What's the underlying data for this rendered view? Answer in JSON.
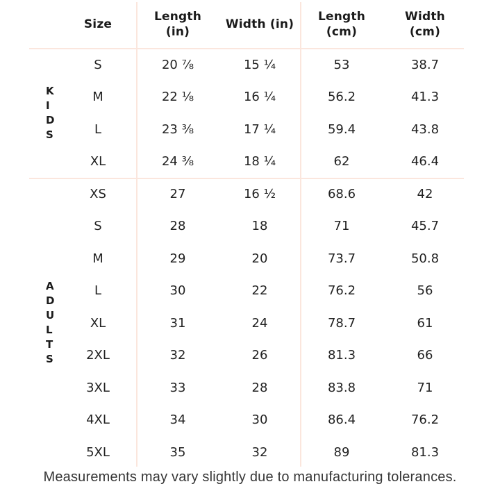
{
  "colors": {
    "background": "#ffffff",
    "divider": "#fbe6dd",
    "text": "#1f1f1f",
    "footer_text": "#363636"
  },
  "table": {
    "columns": {
      "size": "Size",
      "length_in": "Length\n(in)",
      "width_in": "Width (in)",
      "length_cm": "Length\n(cm)",
      "width_cm": "Width\n(cm)"
    },
    "groups": [
      {
        "label": "KIDS",
        "rows": [
          {
            "size": "S",
            "length_in": "20 ⅞",
            "width_in": "15 ¼",
            "length_cm": "53",
            "width_cm": "38.7"
          },
          {
            "size": "M",
            "length_in": "22 ⅛",
            "width_in": "16 ¼",
            "length_cm": "56.2",
            "width_cm": "41.3"
          },
          {
            "size": "L",
            "length_in": "23 ⅜",
            "width_in": "17 ¼",
            "length_cm": "59.4",
            "width_cm": "43.8"
          },
          {
            "size": "XL",
            "length_in": "24 ⅜",
            "width_in": "18 ¼",
            "length_cm": "62",
            "width_cm": "46.4"
          }
        ]
      },
      {
        "label": "ADULTS",
        "rows": [
          {
            "size": "XS",
            "length_in": "27",
            "width_in": "16 ½",
            "length_cm": "68.6",
            "width_cm": "42"
          },
          {
            "size": "S",
            "length_in": "28",
            "width_in": "18",
            "length_cm": "71",
            "width_cm": "45.7"
          },
          {
            "size": "M",
            "length_in": "29",
            "width_in": "20",
            "length_cm": "73.7",
            "width_cm": "50.8"
          },
          {
            "size": "L",
            "length_in": "30",
            "width_in": "22",
            "length_cm": "76.2",
            "width_cm": "56"
          },
          {
            "size": "XL",
            "length_in": "31",
            "width_in": "24",
            "length_cm": "78.7",
            "width_cm": "61"
          },
          {
            "size": "2XL",
            "length_in": "32",
            "width_in": "26",
            "length_cm": "81.3",
            "width_cm": "66"
          },
          {
            "size": "3XL",
            "length_in": "33",
            "width_in": "28",
            "length_cm": "83.8",
            "width_cm": "71"
          },
          {
            "size": "4XL",
            "length_in": "34",
            "width_in": "30",
            "length_cm": "86.4",
            "width_cm": "76.2"
          },
          {
            "size": "5XL",
            "length_in": "35",
            "width_in": "32",
            "length_cm": "89",
            "width_cm": "81.3"
          }
        ]
      }
    ]
  },
  "footer": {
    "note": "Measurements may vary slightly due to manufacturing tolerances."
  }
}
